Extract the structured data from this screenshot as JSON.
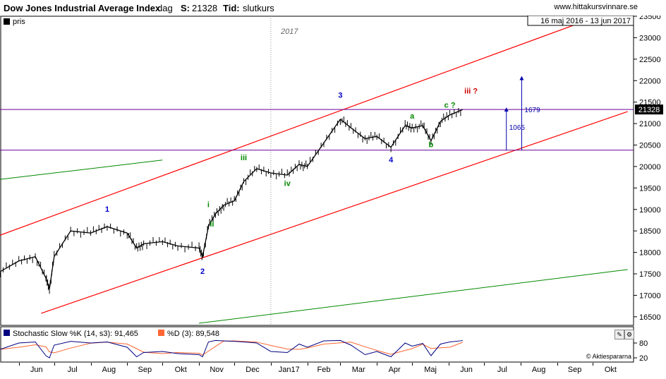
{
  "header": {
    "title": "Dow Jones Industrial Average Index",
    "sep1": "-",
    "interval": "dag",
    "close_label": "S:",
    "close_value": "21328",
    "time_label": "Tid:",
    "time_value": "slutkurs",
    "site": "www.hittakursvinnare.se",
    "date_range": "16 maj 2016 - 13 jun 2017"
  },
  "main_panel": {
    "legend": "pris",
    "year_marker": "2017",
    "price_tag": "21328",
    "measure_1": "1065",
    "measure_2": "1679"
  },
  "wave_labels": [
    {
      "text": "1",
      "color": "#0000cc"
    },
    {
      "text": "2",
      "color": "#0000cc"
    },
    {
      "text": "3",
      "color": "#0000cc"
    },
    {
      "text": "4",
      "color": "#0000cc"
    },
    {
      "text": "i",
      "color": "#008800"
    },
    {
      "text": "ii",
      "color": "#008800"
    },
    {
      "text": "iii",
      "color": "#008800"
    },
    {
      "text": "iv",
      "color": "#008800"
    },
    {
      "text": "a",
      "color": "#008800"
    },
    {
      "text": "b",
      "color": "#008800"
    },
    {
      "text": "c ?",
      "color": "#008800"
    },
    {
      "text": "iii ?",
      "color": "#cc0000"
    }
  ],
  "stoch_panel": {
    "k_label": "Stochastic Slow %K (14, s3): 91,465",
    "d_label": "%D (3): 89,548",
    "k_color": "#000080",
    "d_color": "#ff6633",
    "credit": "© Aktiespararna",
    "ticks": [
      "80",
      "20"
    ]
  },
  "colors": {
    "channel": "#ff0000",
    "horizontal": "#660099",
    "green": "#008800",
    "measure": "#0000aa",
    "price": "#000000"
  },
  "chart_data": {
    "type": "line",
    "title": "Dow Jones Industrial Average Index",
    "ylim": [
      16300,
      23500
    ],
    "y_ticks": [
      16500,
      17000,
      17500,
      18000,
      18500,
      19000,
      19500,
      20000,
      20500,
      21000,
      21500,
      22000,
      22500,
      23000,
      23500
    ],
    "x_ticks": [
      "Jun",
      "Jul",
      "Aug",
      "Sep",
      "Okt",
      "Nov",
      "Dec",
      "Jan17",
      "Feb",
      "Mar",
      "Apr",
      "Maj",
      "Jun",
      "Jul",
      "Aug",
      "Sep",
      "Okt"
    ],
    "x_dates": [
      "2016-05-16",
      "2016-06-01",
      "2016-06-15",
      "2016-06-24",
      "2016-06-27",
      "2016-07-01",
      "2016-07-15",
      "2016-08-01",
      "2016-08-15",
      "2016-09-01",
      "2016-09-09",
      "2016-09-15",
      "2016-10-01",
      "2016-10-14",
      "2016-11-01",
      "2016-11-04",
      "2016-11-09",
      "2016-11-15",
      "2016-11-22",
      "2016-12-01",
      "2016-12-09",
      "2016-12-20",
      "2017-01-01",
      "2017-01-15",
      "2017-01-25",
      "2017-02-01",
      "2017-02-15",
      "2017-03-01",
      "2017-03-10",
      "2017-03-22",
      "2017-04-01",
      "2017-04-13",
      "2017-04-25",
      "2017-05-01",
      "2017-05-10",
      "2017-05-17",
      "2017-05-25",
      "2017-06-02",
      "2017-06-13"
    ],
    "series": [
      {
        "values": [
          17550,
          17800,
          17900,
          17400,
          17150,
          17900,
          18500,
          18450,
          18600,
          18450,
          18100,
          18200,
          18250,
          18150,
          18100,
          17900,
          18600,
          18900,
          19100,
          19200,
          19650,
          19950,
          19850,
          19800,
          20050,
          20000,
          20550,
          21100,
          20900,
          20650,
          20700,
          20450,
          20950,
          20900,
          20950,
          20600,
          21050,
          21200,
          21328
        ]
      }
    ],
    "stochastic_k": [
      50,
      80,
      85,
      20,
      10,
      70,
      88,
      80,
      85,
      60,
      15,
      35,
      40,
      30,
      25,
      15,
      85,
      92,
      90,
      88,
      85,
      80,
      40,
      35,
      75,
      60,
      90,
      92,
      70,
      25,
      40,
      15,
      80,
      65,
      78,
      20,
      75,
      85,
      91.465
    ],
    "channel_lines": [
      {
        "from": [
          "2016-05-16",
          18400
        ],
        "to": [
          "2017-10-01",
          23450
        ]
      },
      {
        "from": [
          "2016-06-20",
          16580
        ],
        "to": [
          "2017-10-31",
          21280
        ]
      }
    ],
    "green_lines": [
      {
        "from": [
          "2016-05-16",
          19700
        ],
        "to": [
          "2016-10-01",
          20150
        ]
      },
      {
        "from": [
          "2016-11-01",
          16350
        ],
        "to": [
          "2017-10-31",
          17600
        ]
      }
    ],
    "horizontal_lines": [
      21328,
      20380
    ],
    "annotations": [
      {
        "text": "1",
        "x": "2016-08-15",
        "y": 18950
      },
      {
        "text": "2",
        "x": "2016-11-04",
        "y": 17500
      },
      {
        "text": "3",
        "x": "2017-03-01",
        "y": 21600
      },
      {
        "text": "4",
        "x": "2017-04-13",
        "y": 20100
      },
      {
        "text": "i",
        "x": "2016-11-09",
        "y": 19050
      },
      {
        "text": "ii",
        "x": "2016-11-12",
        "y": 18600
      },
      {
        "text": "iii",
        "x": "2016-12-09",
        "y": 20150
      },
      {
        "text": "iv",
        "x": "2017-01-15",
        "y": 19550
      },
      {
        "text": "a",
        "x": "2017-05-01",
        "y": 21120
      },
      {
        "text": "b",
        "x": "2017-05-17",
        "y": 20450
      },
      {
        "text": "c ?",
        "x": "2017-06-02",
        "y": 21370
      },
      {
        "text": "iii ?",
        "x": "2017-06-20",
        "y": 21700
      }
    ]
  }
}
